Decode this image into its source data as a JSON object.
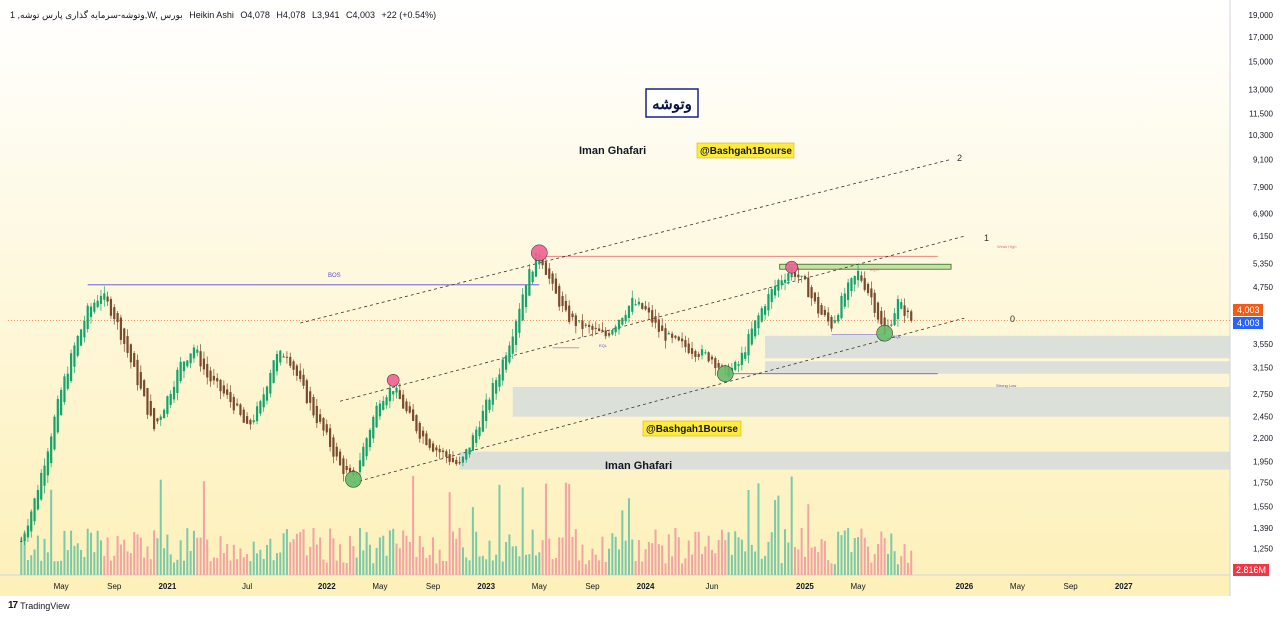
{
  "header": {
    "symbol": "1 ,وتوشه-سرمایه گذاری پارس توشه,W, بورس",
    "chart_type": "Heikin Ashi",
    "open": "O4,078",
    "high": "H4,078",
    "low": "L3,941",
    "close": "C4,003",
    "change": "+22 (+0.54%)"
  },
  "title_box": "وتوشه",
  "watermarks": {
    "author_top": "Iman Ghafari",
    "channel_top": "@Bashgah1Bourse",
    "channel_mid": "@Bashgah1Bourse",
    "author_bottom": "Iman Ghafari"
  },
  "annotations": {
    "bos": "BOS",
    "weak_high": "Weak High",
    "strong_low": "Strong Low",
    "eqh": "EQH",
    "eql_1": "EQL",
    "eql_2": "EQL",
    "channel_2": "2",
    "channel_1": "1",
    "channel_0": "0"
  },
  "price_scale": {
    "ticks": [
      "19,000",
      "17,000",
      "15,000",
      "13,000",
      "11,500",
      "10,300",
      "9,100",
      "7,900",
      "6,900",
      "6,150",
      "5,350",
      "4,750",
      "3,550",
      "3,150",
      "2,750",
      "2,450",
      "2,200",
      "1,950",
      "1,750",
      "1,550",
      "1,390",
      "1,250"
    ],
    "last_price_label": "4,003",
    "prev_close_label": "4,003",
    "volume_label": "2.816M"
  },
  "time_axis": {
    "labels": [
      "May",
      "Sep",
      "2021",
      "Jul",
      "2022",
      "May",
      "Sep",
      "2023",
      "May",
      "Sep",
      "2024",
      "Jun",
      "2025",
      "May",
      "2026",
      "May",
      "Sep",
      "2027"
    ]
  },
  "footer": {
    "brand": "TradingView"
  },
  "colors": {
    "background_top": "#ffffff",
    "background_bottom": "#fdf0b8",
    "candle_up": "#13a36c",
    "candle_down": "#7a4a2e",
    "volume_up": "#7ac9a8",
    "volume_down": "#f2a3a3",
    "bos_line": "#5b4ad6",
    "weak_high_line": "#e57373",
    "zone_fill": "#cfd8dc",
    "last_price": "#f35b19",
    "prev_close": "#2962ff",
    "marker_high": "#f06292",
    "marker_low": "#66bb6a",
    "label_bg": "#ffeb3b"
  },
  "chart_data": {
    "type": "candlestick",
    "series_style": "Heikin Ashi",
    "y_scale": "log",
    "ylim": [
      1150,
      19000
    ],
    "close_path": [
      [
        "2020-02",
        1300
      ],
      [
        "2020-03",
        1600
      ],
      [
        "2020-04",
        2100
      ],
      [
        "2020-05",
        2800
      ],
      [
        "2020-06",
        3500
      ],
      [
        "2020-07",
        4200
      ],
      [
        "2020-08",
        4600
      ],
      [
        "2020-09",
        4100
      ],
      [
        "2020-10",
        3400
      ],
      [
        "2020-11",
        2800
      ],
      [
        "2020-12",
        2300
      ],
      [
        "2021-01",
        2700
      ],
      [
        "2021-02",
        3200
      ],
      [
        "2021-03",
        3500
      ],
      [
        "2021-04",
        3000
      ],
      [
        "2021-05",
        2800
      ],
      [
        "2021-06",
        2600
      ],
      [
        "2021-07",
        2300
      ],
      [
        "2021-08",
        2600
      ],
      [
        "2021-09",
        3300
      ],
      [
        "2021-10",
        3400
      ],
      [
        "2021-11",
        2900
      ],
      [
        "2021-12",
        2500
      ],
      [
        "2022-01",
        2200
      ],
      [
        "2022-02",
        1900
      ],
      [
        "2022-03",
        1780
      ],
      [
        "2022-04",
        2200
      ],
      [
        "2022-05",
        2700
      ],
      [
        "2022-06",
        2850
      ],
      [
        "2022-07",
        2500
      ],
      [
        "2022-08",
        2250
      ],
      [
        "2022-09",
        2100
      ],
      [
        "2022-10",
        2000
      ],
      [
        "2022-11",
        1900
      ],
      [
        "2022-12",
        2200
      ],
      [
        "2023-01",
        2600
      ],
      [
        "2023-02",
        3100
      ],
      [
        "2023-03",
        3800
      ],
      [
        "2023-04",
        4900
      ],
      [
        "2023-05",
        5700
      ],
      [
        "2023-06",
        4700
      ],
      [
        "2023-07",
        4100
      ],
      [
        "2023-08",
        3900
      ],
      [
        "2023-09",
        3800
      ],
      [
        "2023-10",
        3700
      ],
      [
        "2023-11",
        4050
      ],
      [
        "2023-12",
        4400
      ],
      [
        "2024-01",
        4200
      ],
      [
        "2024-02",
        3800
      ],
      [
        "2024-03",
        3600
      ],
      [
        "2024-04",
        3500
      ],
      [
        "2024-05",
        3400
      ],
      [
        "2024-06",
        3300
      ],
      [
        "2024-07",
        3050
      ],
      [
        "2024-08",
        3200
      ],
      [
        "2024-09",
        3800
      ],
      [
        "2024-10",
        4400
      ],
      [
        "2024-11",
        4900
      ],
      [
        "2024-12",
        5200
      ],
      [
        "2025-01",
        4800
      ],
      [
        "2025-02",
        4200
      ],
      [
        "2025-03",
        3900
      ],
      [
        "2025-04",
        4600
      ],
      [
        "2025-05",
        5100
      ],
      [
        "2025-06",
        4500
      ],
      [
        "2025-07",
        3700
      ],
      [
        "2025-08",
        4400
      ],
      [
        "2025-09",
        4003
      ]
    ],
    "x_range": [
      "2020-01",
      "2027-09"
    ],
    "x_ticks": [
      [
        "2020-05",
        "May"
      ],
      [
        "2020-09",
        "Sep"
      ],
      [
        "2021-01",
        "2021"
      ],
      [
        "2021-07",
        "Jul"
      ],
      [
        "2022-01",
        "2022"
      ],
      [
        "2022-05",
        "May"
      ],
      [
        "2022-09",
        "Sep"
      ],
      [
        "2023-01",
        "2023"
      ],
      [
        "2023-05",
        "May"
      ],
      [
        "2023-09",
        "Sep"
      ],
      [
        "2024-01",
        "2024"
      ],
      [
        "2024-06",
        "Jun"
      ],
      [
        "2025-01",
        "2025"
      ],
      [
        "2025-05",
        "May"
      ],
      [
        "2026-01",
        "2026"
      ],
      [
        "2026-05",
        "May"
      ],
      [
        "2026-09",
        "Sep"
      ],
      [
        "2027-01",
        "2027"
      ]
    ],
    "last_value": 4003,
    "volume_max_label": "2.816M",
    "levels": {
      "bos": 4800,
      "weak_high": 5550,
      "eqh": 5250,
      "strong_low": 3050
    },
    "zones": [
      {
        "from": "2024-10",
        "to": "2027-09",
        "low": 3300,
        "high": 3700
      },
      {
        "from": "2024-10",
        "to": "2027-09",
        "low": 3050,
        "high": 3250
      },
      {
        "from": "2023-03",
        "to": "2027-09",
        "low": 2450,
        "high": 2850
      },
      {
        "from": "2022-11",
        "to": "2027-09",
        "low": 1870,
        "high": 2050
      }
    ],
    "channel": [
      {
        "name": "2",
        "p1": [
          "2021-11",
          3950
        ],
        "p2": [
          "2025-12",
          9100
        ]
      },
      {
        "name": "1",
        "p1": [
          "2022-02",
          2650
        ],
        "p2": [
          "2026-01",
          6150
        ]
      },
      {
        "name": "0",
        "p1": [
          "2022-03",
          1750
        ],
        "p2": [
          "2026-01",
          4050
        ]
      }
    ],
    "pivots": [
      {
        "t": "2023-05",
        "p": 5650,
        "kind": "high"
      },
      {
        "t": "2022-06",
        "p": 2950,
        "kind": "high"
      },
      {
        "t": "2024-12",
        "p": 5250,
        "kind": "high"
      },
      {
        "t": "2022-03",
        "p": 1780,
        "kind": "low"
      },
      {
        "t": "2024-07",
        "p": 3050,
        "kind": "low"
      },
      {
        "t": "2025-07",
        "p": 3750,
        "kind": "low"
      }
    ]
  }
}
